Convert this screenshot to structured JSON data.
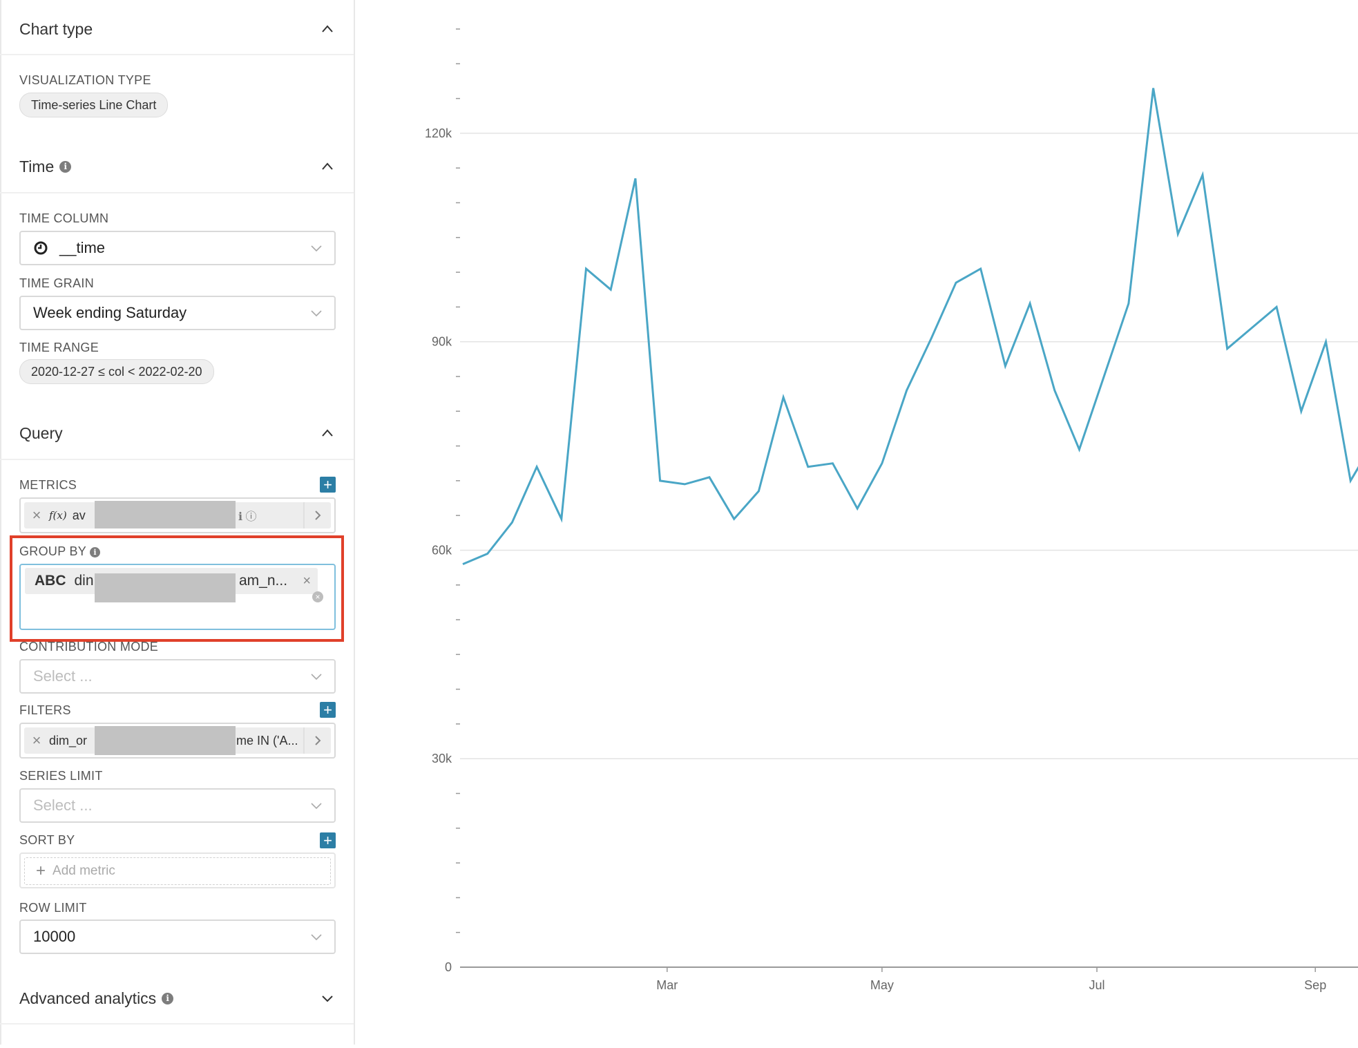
{
  "sidebar": {
    "chart_type": {
      "title": "Chart type",
      "viz_label": "VISUALIZATION TYPE",
      "viz_value": "Time-series Line Chart"
    },
    "time": {
      "title": "Time",
      "time_column_label": "TIME COLUMN",
      "time_column_value": "__time",
      "time_grain_label": "TIME GRAIN",
      "time_grain_value": "Week ending Saturday",
      "time_range_label": "TIME RANGE",
      "time_range_value": "2020-12-27 ≤ col < 2022-02-20"
    },
    "query": {
      "title": "Query",
      "metrics_label": "METRICS",
      "metric_tag_fx": "f(x)",
      "metric_tag_text": "av",
      "group_by_label": "GROUP BY",
      "group_by_tag_type": "ABC",
      "group_by_tag_prefix": "din",
      "group_by_tag_suffix": "am_n...",
      "contribution_mode_label": "CONTRIBUTION MODE",
      "contribution_mode_placeholder": "Select ...",
      "filters_label": "FILTERS",
      "filter_tag_prefix": "dim_or",
      "filter_tag_suffix": "me IN ('A...",
      "series_limit_label": "SERIES LIMIT",
      "series_limit_placeholder": "Select ...",
      "sort_by_label": "SORT BY",
      "sort_by_add": "Add metric",
      "row_limit_label": "ROW LIMIT",
      "row_limit_value": "10000"
    },
    "advanced": {
      "title": "Advanced analytics"
    }
  },
  "colors": {
    "line": "#4aa6c6",
    "accent_button": "#2c7ea5",
    "highlight_border": "#e0402a"
  },
  "chart_data": {
    "type": "line",
    "title": "",
    "xlabel": "",
    "ylabel": "",
    "ylim": [
      0,
      135000
    ],
    "yticks": [
      0,
      30000,
      60000,
      90000,
      120000
    ],
    "ytick_labels": [
      "0",
      "30k",
      "60k",
      "90k",
      "120k"
    ],
    "xticks": [
      "Mar",
      "May",
      "Jul",
      "Sep"
    ],
    "grid": true,
    "legend": "none",
    "series": [
      {
        "x": [
          "2021-01-02",
          "2021-01-09",
          "2021-01-16",
          "2021-01-23",
          "2021-01-30",
          "2021-02-06",
          "2021-02-13",
          "2021-02-20",
          "2021-02-27",
          "2021-03-06",
          "2021-03-13",
          "2021-03-20",
          "2021-03-27",
          "2021-04-03",
          "2021-04-10",
          "2021-04-17",
          "2021-04-24",
          "2021-05-01",
          "2021-05-08",
          "2021-05-15",
          "2021-05-22",
          "2021-05-29",
          "2021-06-05",
          "2021-06-12",
          "2021-06-19",
          "2021-06-26",
          "2021-07-03",
          "2021-07-10",
          "2021-07-17",
          "2021-07-24",
          "2021-07-31",
          "2021-08-07",
          "2021-08-14",
          "2021-08-21",
          "2021-08-28",
          "2021-09-04",
          "2021-09-11",
          "2021-09-18"
        ],
        "values": [
          58000,
          59500,
          64000,
          72000,
          64500,
          100500,
          97500,
          113500,
          70000,
          69500,
          70500,
          64500,
          68500,
          82000,
          72000,
          72500,
          66000,
          72500,
          83000,
          90500,
          98500,
          100500,
          86500,
          95500,
          83000,
          74500,
          85000,
          95500,
          126500,
          105500,
          114000,
          89000,
          92000,
          95000,
          80000,
          90000,
          70000,
          76000
        ]
      }
    ]
  }
}
